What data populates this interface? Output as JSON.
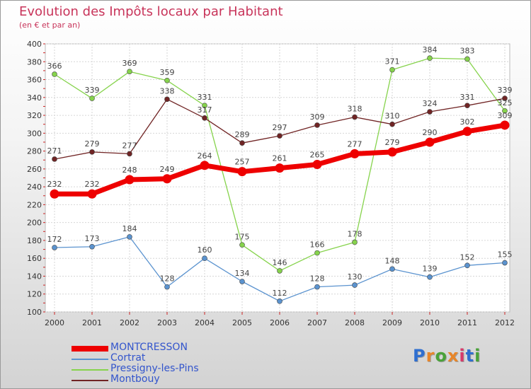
{
  "title": "Evolution des Impôts locaux par Habitant",
  "subtitle": "(en € et par an)",
  "logo": {
    "text": "Proxiti",
    "letters": [
      "P",
      "r",
      "o",
      "x",
      "i",
      "t",
      "i"
    ],
    "letter_colors": [
      "#2f6fd0",
      "#e7862a",
      "#4aa23a",
      "#e7862a",
      "#d63a6a",
      "#2f6fd0",
      "#4aa23a"
    ]
  },
  "chart_data": {
    "type": "line",
    "x": [
      "2000",
      "2001",
      "2002",
      "2003",
      "2004",
      "2005",
      "2006",
      "2007",
      "2008",
      "2009",
      "2010",
      "2011",
      "2012"
    ],
    "ylim": [
      100,
      400
    ],
    "yticks": [
      100,
      120,
      140,
      160,
      180,
      200,
      220,
      240,
      260,
      280,
      300,
      320,
      340,
      360,
      380,
      400
    ],
    "grid": true,
    "legend_position": "bottom-left",
    "series": [
      {
        "name": "MONTCRESSON",
        "color": "#ee0000",
        "values": [
          232,
          232,
          248,
          249,
          264,
          257,
          261,
          265,
          277,
          279,
          290,
          302,
          309
        ],
        "labels": [
          "232",
          "232",
          "248",
          "249",
          "264",
          "257",
          "261",
          "265",
          "277",
          "279",
          "290",
          "302",
          "309"
        ]
      },
      {
        "name": "Cortrat",
        "color": "#5b93cf",
        "values": [
          172,
          173,
          184,
          128,
          160,
          134,
          112,
          128,
          130,
          148,
          139,
          152,
          155
        ],
        "labels": [
          "172",
          "173",
          "184",
          "128",
          "160",
          "134",
          "112",
          "128",
          "130",
          "148",
          "139",
          "152",
          "155"
        ]
      },
      {
        "name": "Pressigny-les-Pins",
        "color": "#86d34c",
        "values": [
          366,
          339,
          369,
          359,
          331,
          175,
          146,
          166,
          178,
          371,
          384,
          383,
          325
        ],
        "labels": [
          "366",
          "339",
          "369",
          "359",
          "331",
          "175",
          "146",
          "166",
          "178",
          "371",
          "384",
          "383",
          "325"
        ]
      },
      {
        "name": "Montbouy",
        "color": "#702424",
        "values": [
          271,
          279,
          277,
          338,
          317,
          289,
          297,
          309,
          318,
          310,
          324,
          331,
          339
        ],
        "labels": [
          "271",
          "279",
          "277",
          "338",
          "317",
          "289",
          "297",
          "309",
          "318",
          "310",
          "324",
          "331",
          "339"
        ]
      }
    ]
  }
}
